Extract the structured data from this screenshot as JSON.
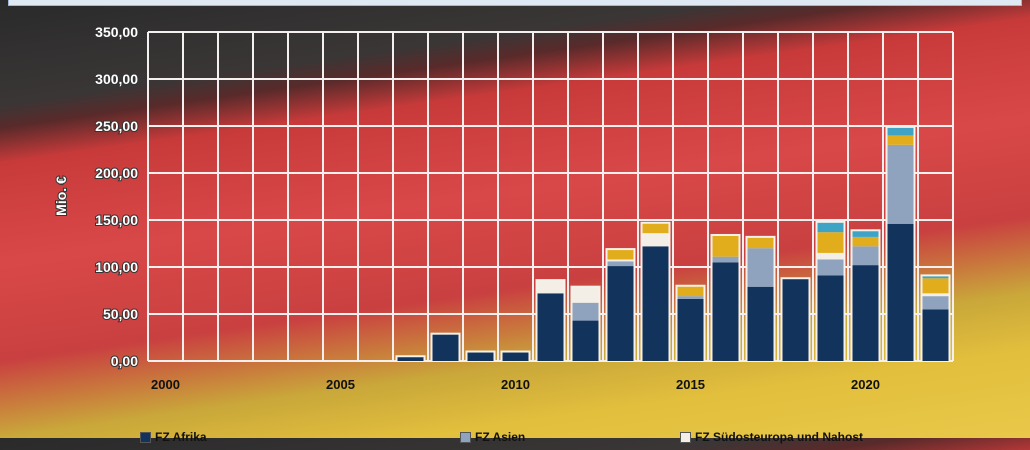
{
  "chart_data": {
    "type": "bar",
    "stacked": true,
    "title": "",
    "xlabel": "",
    "ylabel": "Mio. €",
    "ylim": [
      0,
      350
    ],
    "yticks": [
      "0,00",
      "50,00",
      "100,00",
      "150,00",
      "200,00",
      "250,00",
      "300,00",
      "350,00"
    ],
    "xticks": [
      "2000",
      "2005",
      "2010",
      "2015",
      "2020"
    ],
    "categories": [
      2000,
      2001,
      2002,
      2003,
      2004,
      2005,
      2006,
      2007,
      2008,
      2009,
      2010,
      2011,
      2012,
      2013,
      2014,
      2015,
      2016,
      2017,
      2018,
      2019,
      2020,
      2021,
      2022
    ],
    "grid": true,
    "legend_position": "bottom",
    "series": [
      {
        "name": "FZ Afrika",
        "color": "#12345c",
        "values": [
          0,
          0,
          0,
          0,
          0,
          0,
          0,
          4,
          28,
          9,
          9,
          72,
          43,
          101,
          122,
          66,
          105,
          79,
          87,
          91,
          102,
          146,
          55
        ]
      },
      {
        "name": "FZ Asien",
        "color": "#8fa3bf",
        "values": [
          0,
          0,
          0,
          0,
          0,
          0,
          0,
          0,
          0,
          0,
          0,
          0,
          19,
          5,
          0,
          3,
          6,
          41,
          0,
          17,
          20,
          84,
          14
        ]
      },
      {
        "name": "FZ Südosteuropa und Nahost",
        "color": "#f4efe6",
        "values": [
          0,
          0,
          0,
          0,
          0,
          0,
          0,
          0,
          0,
          0,
          0,
          13,
          16,
          2,
          14,
          0,
          0,
          0,
          0,
          7,
          0,
          0,
          3
        ]
      },
      {
        "name": "",
        "color": "#e2ad1c",
        "values": [
          0,
          0,
          0,
          0,
          0,
          0,
          0,
          0,
          0,
          0,
          0,
          0,
          0,
          10,
          10,
          10,
          22,
          11,
          0,
          22,
          10,
          10,
          16
        ]
      },
      {
        "name": "",
        "color": "#3ea3c4",
        "values": [
          0,
          0,
          0,
          0,
          0,
          0,
          0,
          0,
          0,
          0,
          0,
          0,
          0,
          0,
          0,
          0,
          0,
          0,
          0,
          10,
          6,
          8,
          2
        ]
      }
    ]
  }
}
